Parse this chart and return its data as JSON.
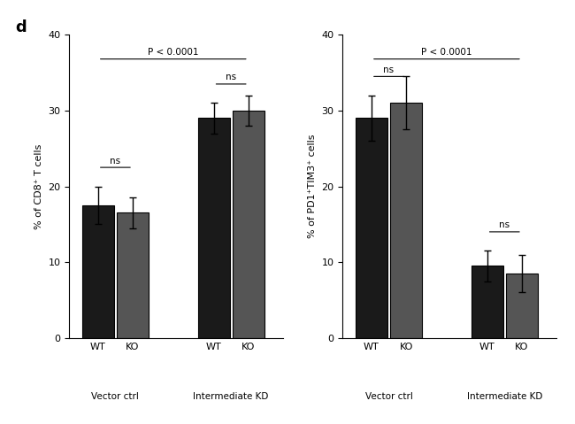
{
  "panel_d_left": {
    "title": "d",
    "ylabel": "% of CD8⁺ T cells",
    "groups": [
      "Vector ctrl",
      "Intermediate KD"
    ],
    "bars": [
      {
        "label": "WT",
        "group": "Vector ctrl",
        "value": 17.5,
        "error": 2.5,
        "color": "#1a1a1a"
      },
      {
        "label": "KO",
        "group": "Vector ctrl",
        "value": 16.5,
        "error": 2.0,
        "color": "#555555"
      },
      {
        "label": "WT",
        "group": "Intermediate KD",
        "value": 29.0,
        "error": 2.0,
        "color": "#1a1a1a"
      },
      {
        "label": "KO",
        "group": "Intermediate KD",
        "value": 30.0,
        "error": 2.0,
        "color": "#555555"
      }
    ],
    "ylim": [
      0,
      40
    ],
    "yticks": [
      0,
      10,
      20,
      30,
      40
    ],
    "significance_main": "P < 0.0001",
    "significance_within": [
      "ns",
      "ns"
    ]
  },
  "panel_d_right": {
    "ylabel": "% of PD1⁺TIM3⁺ cells",
    "groups": [
      "Vector ctrl",
      "Intermediate KD"
    ],
    "bars": [
      {
        "label": "WT",
        "group": "Vector ctrl",
        "value": 29.0,
        "error": 3.0,
        "color": "#1a1a1a"
      },
      {
        "label": "KO",
        "group": "Vector ctrl",
        "value": 31.0,
        "error": 3.5,
        "color": "#555555"
      },
      {
        "label": "WT",
        "group": "Intermediate KD",
        "value": 9.5,
        "error": 2.0,
        "color": "#1a1a1a"
      },
      {
        "label": "KO",
        "group": "Intermediate KD",
        "value": 8.5,
        "error": 2.5,
        "color": "#555555"
      }
    ],
    "ylim": [
      0,
      40
    ],
    "yticks": [
      0,
      10,
      20,
      30,
      40
    ],
    "significance_main": "P < 0.0001",
    "significance_within": [
      "ns",
      "ns"
    ]
  }
}
